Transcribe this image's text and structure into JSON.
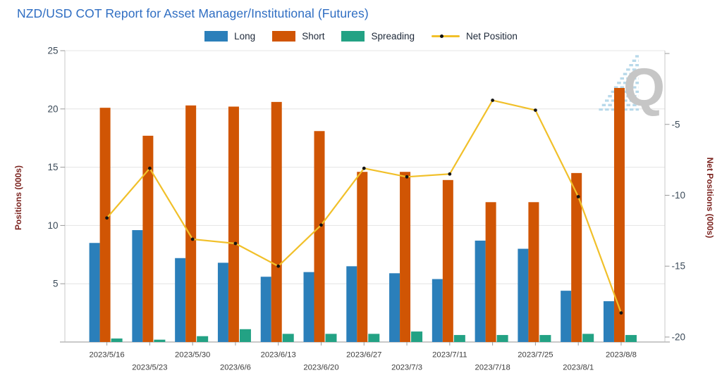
{
  "header": {
    "title": "NZD/USD COT Report for Asset Manager/Institutional (Futures)",
    "title_color": "#2e6dc2"
  },
  "watermark": {
    "letter": "Q",
    "letter_color": "#c6c6c6",
    "stripe_color": "#b8d9ea"
  },
  "legend": [
    {
      "label": "Long",
      "color": "#2b7fba",
      "marker": "swatch"
    },
    {
      "label": "Short",
      "color": "#d05504",
      "marker": "swatch"
    },
    {
      "label": "Spreading",
      "color": "#23a284",
      "marker": "swatch"
    },
    {
      "label": "Net Position",
      "color": "#f1c02a",
      "marker": "line-dot"
    }
  ],
  "chart_data": {
    "type": "bar+line",
    "title": "NZD/USD COT Report for Asset Manager/Institutional (Futures)",
    "grid": true,
    "legend_position": "top",
    "categories": [
      "2023/5/16",
      "2023/5/23",
      "2023/5/30",
      "2023/6/6",
      "2023/6/13",
      "2023/6/20",
      "2023/6/27",
      "2023/7/3",
      "2023/7/11",
      "2023/7/18",
      "2023/7/25",
      "2023/8/1",
      "2023/8/8"
    ],
    "series": [
      {
        "name": "Long",
        "type": "bar",
        "axis": "left",
        "color": "#2b7fba",
        "values": [
          8.5,
          9.6,
          7.2,
          6.8,
          5.6,
          6.0,
          6.5,
          5.9,
          5.4,
          8.7,
          8.0,
          4.4,
          3.5
        ]
      },
      {
        "name": "Short",
        "type": "bar",
        "axis": "left",
        "color": "#d05504",
        "values": [
          20.1,
          17.7,
          20.3,
          20.2,
          20.6,
          18.1,
          14.6,
          14.6,
          13.9,
          12.0,
          12.0,
          14.5,
          21.8
        ]
      },
      {
        "name": "Spreading",
        "type": "bar",
        "axis": "left",
        "color": "#23a284",
        "values": [
          0.3,
          0.2,
          0.5,
          1.1,
          0.7,
          0.7,
          0.7,
          0.9,
          0.6,
          0.6,
          0.6,
          0.7,
          0.6
        ]
      },
      {
        "name": "Net Position",
        "type": "line",
        "axis": "right",
        "color": "#f1c02a",
        "marker_color": "#141414",
        "values": [
          -11.6,
          -8.1,
          -13.1,
          -13.4,
          -15.0,
          -12.1,
          -8.1,
          -8.7,
          -8.5,
          -3.3,
          -4.0,
          -10.1,
          -18.3
        ]
      }
    ],
    "left_axis": {
      "title": "Positions (000s)",
      "min": 0,
      "max": 25,
      "ticks": [
        5,
        10,
        15,
        20,
        25
      ],
      "tick_labels": [
        "5",
        "10",
        "15",
        "20",
        "25"
      ],
      "title_color": "#7c2420",
      "tick_color": "#3b4a58"
    },
    "right_axis": {
      "title": "Net Positions (000s)",
      "min": -20.35,
      "max": 0.2,
      "ticks": [
        0,
        -5,
        -10,
        -15,
        -20
      ],
      "tick_labels": [
        "",
        "-5",
        "-10",
        "-15",
        "-20"
      ],
      "title_color": "#7c2420",
      "tick_color": "#3b4a58"
    },
    "x_axis": {
      "tick_color": "#3d3d3d"
    }
  }
}
